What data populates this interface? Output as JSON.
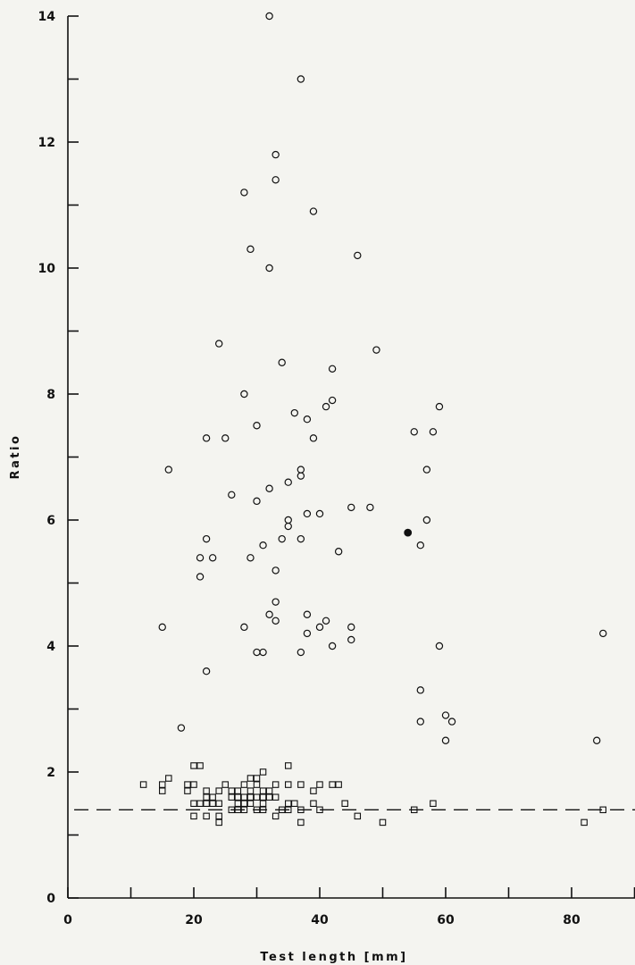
{
  "chart_data": {
    "type": "scatter",
    "title": "",
    "xlabel": "Test length [mm]",
    "ylabel": "Ratio",
    "xlim": [
      0,
      90
    ],
    "ylim": [
      0,
      14
    ],
    "x_ticks": [
      0,
      20,
      40,
      60,
      80
    ],
    "x_minor_ticks": [
      10,
      30,
      50,
      70,
      90
    ],
    "y_ticks": [
      0,
      2,
      4,
      6,
      8,
      10,
      12,
      14
    ],
    "y_minor_ticks": [
      1,
      3,
      5,
      7,
      9,
      11,
      13
    ],
    "grid": false,
    "reference_line": {
      "y": 1.4,
      "style": "dashed"
    },
    "series": [
      {
        "marker": "open-circle",
        "points": [
          [
            32,
            14.0
          ],
          [
            37,
            13.0
          ],
          [
            33,
            11.8
          ],
          [
            33,
            11.4
          ],
          [
            28,
            11.2
          ],
          [
            39,
            10.9
          ],
          [
            29,
            10.3
          ],
          [
            46,
            10.2
          ],
          [
            32,
            10.0
          ],
          [
            24,
            8.8
          ],
          [
            49,
            8.7
          ],
          [
            34,
            8.5
          ],
          [
            42,
            8.4
          ],
          [
            28,
            8.0
          ],
          [
            42,
            7.9
          ],
          [
            59,
            7.8
          ],
          [
            41,
            7.8
          ],
          [
            36,
            7.7
          ],
          [
            38,
            7.6
          ],
          [
            30,
            7.5
          ],
          [
            55,
            7.4
          ],
          [
            58,
            7.4
          ],
          [
            22,
            7.3
          ],
          [
            25,
            7.3
          ],
          [
            39,
            7.3
          ],
          [
            16,
            6.8
          ],
          [
            37,
            6.8
          ],
          [
            57,
            6.8
          ],
          [
            37,
            6.7
          ],
          [
            35,
            6.6
          ],
          [
            32,
            6.5
          ],
          [
            26,
            6.4
          ],
          [
            30,
            6.3
          ],
          [
            45,
            6.2
          ],
          [
            48,
            6.2
          ],
          [
            38,
            6.1
          ],
          [
            40,
            6.1
          ],
          [
            35,
            6.0
          ],
          [
            57,
            6.0
          ],
          [
            35,
            5.9
          ],
          [
            22,
            5.7
          ],
          [
            34,
            5.7
          ],
          [
            37,
            5.7
          ],
          [
            31,
            5.6
          ],
          [
            56,
            5.6
          ],
          [
            43,
            5.5
          ],
          [
            21,
            5.4
          ],
          [
            23,
            5.4
          ],
          [
            29,
            5.4
          ],
          [
            33,
            5.2
          ],
          [
            21,
            5.1
          ],
          [
            33,
            4.7
          ],
          [
            32,
            4.5
          ],
          [
            38,
            4.5
          ],
          [
            33,
            4.4
          ],
          [
            41,
            4.4
          ],
          [
            15,
            4.3
          ],
          [
            28,
            4.3
          ],
          [
            40,
            4.3
          ],
          [
            45,
            4.3
          ],
          [
            38,
            4.2
          ],
          [
            85,
            4.2
          ],
          [
            45,
            4.1
          ],
          [
            42,
            4.0
          ],
          [
            59,
            4.0
          ],
          [
            30,
            3.9
          ],
          [
            31,
            3.9
          ],
          [
            37,
            3.9
          ],
          [
            22,
            3.6
          ],
          [
            56,
            3.3
          ],
          [
            60,
            2.9
          ],
          [
            56,
            2.8
          ],
          [
            61,
            2.8
          ],
          [
            18,
            2.7
          ],
          [
            60,
            2.5
          ],
          [
            84,
            2.5
          ]
        ]
      },
      {
        "marker": "filled-circle",
        "points": [
          [
            54,
            5.8
          ]
        ]
      },
      {
        "marker": "open-square",
        "points": [
          [
            20,
            2.1
          ],
          [
            21,
            2.1
          ],
          [
            35,
            2.1
          ],
          [
            31,
            2.0
          ],
          [
            16,
            1.9
          ],
          [
            29,
            1.9
          ],
          [
            30,
            1.9
          ],
          [
            12,
            1.8
          ],
          [
            15,
            1.8
          ],
          [
            19,
            1.8
          ],
          [
            20,
            1.8
          ],
          [
            25,
            1.8
          ],
          [
            28,
            1.8
          ],
          [
            30,
            1.8
          ],
          [
            33,
            1.8
          ],
          [
            35,
            1.8
          ],
          [
            37,
            1.8
          ],
          [
            40,
            1.8
          ],
          [
            42,
            1.8
          ],
          [
            43,
            1.8
          ],
          [
            15,
            1.7
          ],
          [
            19,
            1.7
          ],
          [
            22,
            1.7
          ],
          [
            24,
            1.7
          ],
          [
            26,
            1.7
          ],
          [
            27,
            1.7
          ],
          [
            29,
            1.7
          ],
          [
            31,
            1.7
          ],
          [
            32,
            1.7
          ],
          [
            39,
            1.7
          ],
          [
            22,
            1.6
          ],
          [
            23,
            1.6
          ],
          [
            26,
            1.6
          ],
          [
            27,
            1.6
          ],
          [
            28,
            1.6
          ],
          [
            29,
            1.6
          ],
          [
            30,
            1.6
          ],
          [
            31,
            1.6
          ],
          [
            32,
            1.6
          ],
          [
            33,
            1.6
          ],
          [
            20,
            1.5
          ],
          [
            21,
            1.5
          ],
          [
            22,
            1.5
          ],
          [
            23,
            1.5
          ],
          [
            24,
            1.5
          ],
          [
            27,
            1.5
          ],
          [
            28,
            1.5
          ],
          [
            29,
            1.5
          ],
          [
            31,
            1.5
          ],
          [
            35,
            1.5
          ],
          [
            36,
            1.5
          ],
          [
            39,
            1.5
          ],
          [
            44,
            1.5
          ],
          [
            58,
            1.5
          ],
          [
            26,
            1.4
          ],
          [
            27,
            1.4
          ],
          [
            28,
            1.4
          ],
          [
            30,
            1.4
          ],
          [
            31,
            1.4
          ],
          [
            34,
            1.4
          ],
          [
            35,
            1.4
          ],
          [
            37,
            1.4
          ],
          [
            40,
            1.4
          ],
          [
            55,
            1.4
          ],
          [
            85,
            1.4
          ],
          [
            20,
            1.3
          ],
          [
            22,
            1.3
          ],
          [
            24,
            1.3
          ],
          [
            33,
            1.3
          ],
          [
            46,
            1.3
          ],
          [
            24,
            1.2
          ],
          [
            37,
            1.2
          ],
          [
            50,
            1.2
          ],
          [
            82,
            1.2
          ]
        ]
      }
    ]
  }
}
